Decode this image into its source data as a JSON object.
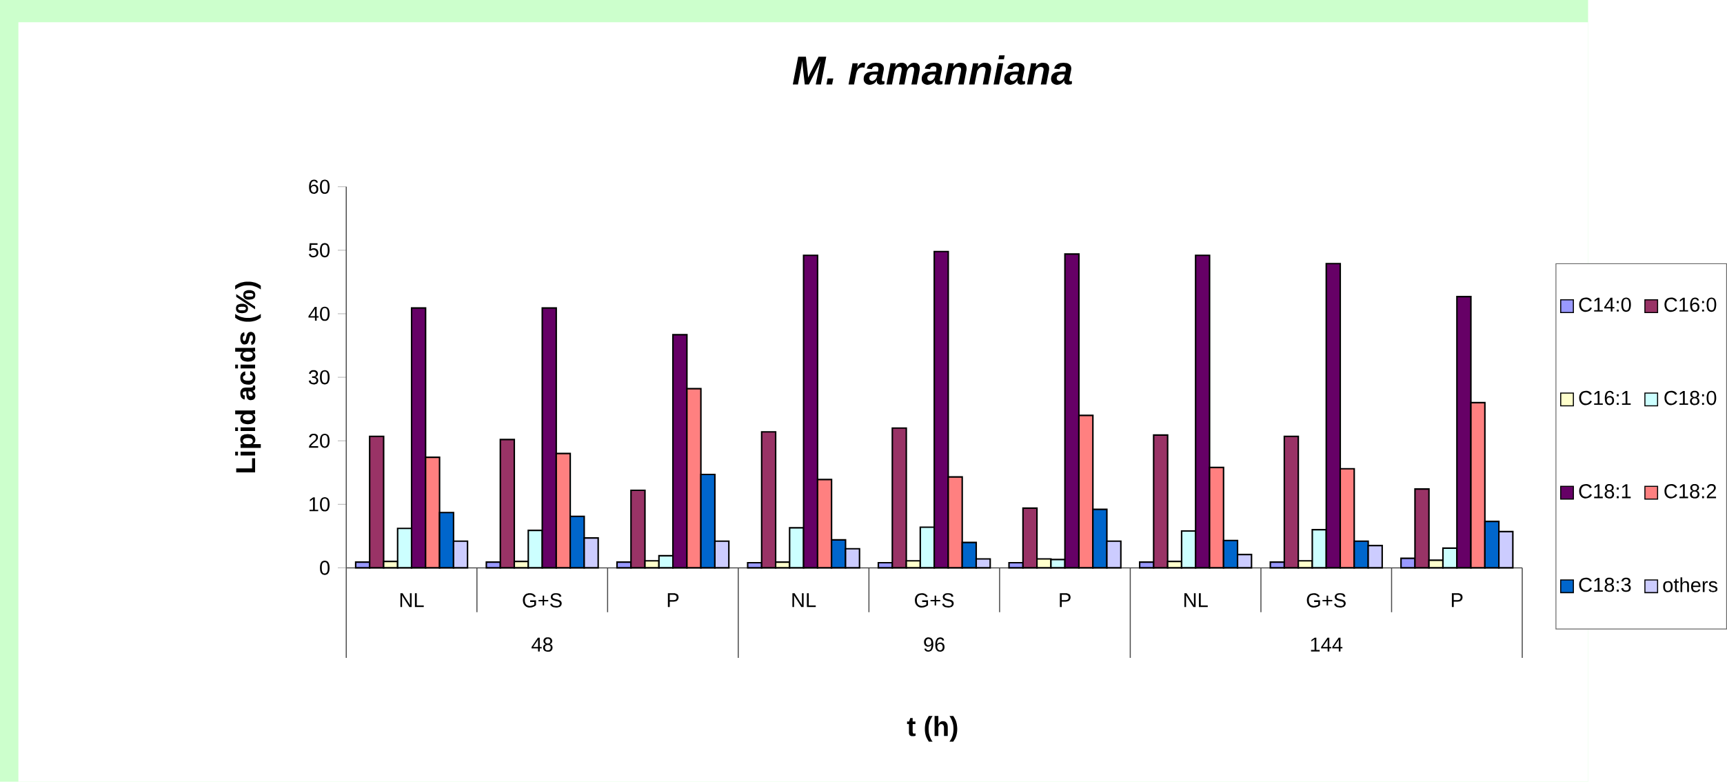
{
  "chart_data": {
    "type": "bar",
    "title": "M. ramanniana",
    "xlabel": "t (h)",
    "ylabel": "Lipid acids (%)",
    "categories": [
      "NL",
      "G+S",
      "P",
      "NL",
      "G+S",
      "P",
      "NL",
      "G+S",
      "P"
    ],
    "annotations": [
      "48",
      "96",
      "144"
    ],
    "series": [
      {
        "name": "C14:0",
        "color": "#9999ff",
        "values": [
          0.9,
          0.9,
          0.9,
          0.8,
          0.8,
          0.8,
          0.9,
          0.9,
          1.5
        ]
      },
      {
        "name": "C16:0",
        "color": "#993366",
        "values": [
          20.7,
          20.2,
          12.2,
          21.4,
          22.0,
          9.4,
          20.9,
          20.7,
          12.4
        ]
      },
      {
        "name": "C16:1",
        "color": "#ffffcc",
        "values": [
          1.0,
          1.0,
          1.1,
          0.9,
          1.1,
          1.4,
          1.0,
          1.1,
          1.2
        ]
      },
      {
        "name": "C18:0",
        "color": "#ccffff",
        "values": [
          6.2,
          5.9,
          1.9,
          6.3,
          6.4,
          1.3,
          5.8,
          6.0,
          3.1
        ]
      },
      {
        "name": "C18:1",
        "color": "#660066",
        "values": [
          40.9,
          40.9,
          36.7,
          49.2,
          49.8,
          49.4,
          49.2,
          47.9,
          42.7
        ]
      },
      {
        "name": "C18:2",
        "color": "#ff8080",
        "values": [
          17.4,
          18.0,
          28.2,
          13.9,
          14.3,
          24.0,
          15.8,
          15.6,
          26.0
        ]
      },
      {
        "name": "C18:3",
        "color": "#0066cc",
        "values": [
          8.7,
          8.1,
          14.7,
          4.4,
          4.0,
          9.2,
          4.3,
          4.2,
          7.3
        ]
      },
      {
        "name": "others",
        "color": "#ccccff",
        "values": [
          4.2,
          4.7,
          4.2,
          3.0,
          1.4,
          4.2,
          2.1,
          3.5,
          5.7
        ]
      }
    ],
    "ylim": [
      0,
      60
    ],
    "yticks": [
      0,
      10,
      20,
      30,
      40,
      50,
      60
    ],
    "legend": "right"
  }
}
